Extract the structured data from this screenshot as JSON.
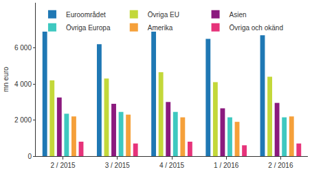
{
  "chart_data": {
    "type": "bar",
    "y_label": "mn euro",
    "categories": [
      "2 / 2015",
      "3 / 2015",
      "4 / 2015",
      "1 / 2016",
      "2 / 2016"
    ],
    "series": [
      {
        "name": "Euroområdet",
        "color": "#1f78b4",
        "values": [
          6900,
          6200,
          6900,
          6500,
          6700
        ]
      },
      {
        "name": "Övriga EU",
        "color": "#c3d83a",
        "values": [
          4200,
          4300,
          4650,
          4100,
          4400
        ]
      },
      {
        "name": "Asien",
        "color": "#8b1a7e",
        "values": [
          3250,
          2900,
          3000,
          2650,
          2950
        ]
      },
      {
        "name": "Övriga Europa",
        "color": "#3ec8c0",
        "values": [
          2350,
          2450,
          2450,
          2150,
          2150
        ]
      },
      {
        "name": "Amerika",
        "color": "#f5a03a",
        "values": [
          2200,
          2300,
          2150,
          1900,
          2200
        ]
      },
      {
        "name": "Övriga och okänd",
        "color": "#e6337a",
        "values": [
          800,
          700,
          800,
          600,
          700
        ]
      }
    ],
    "ylim": [
      0,
      8500
    ],
    "yticks": [
      0,
      {
        "value": 2000,
        "label": "2 000"
      },
      {
        "value": 4000,
        "label": "4 000"
      },
      {
        "value": 6000,
        "label": "6 000"
      }
    ],
    "grid": false,
    "legend": "top-left"
  }
}
